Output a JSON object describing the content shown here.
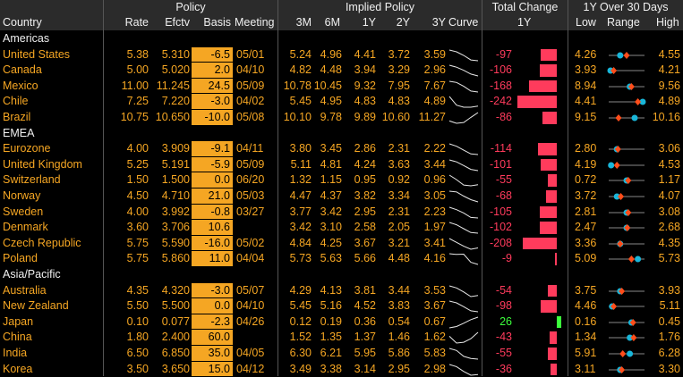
{
  "header_groups": {
    "policy": "Policy",
    "implied": "Implied Policy",
    "total_change": "Total Change",
    "over30": "1Y Over 30 Days"
  },
  "columns": {
    "country": "Country",
    "rate": "Rate",
    "efctv": "Efctv",
    "basis": "Basis",
    "meeting": "Meeting",
    "m3": "3M",
    "m6": "6M",
    "y1": "1Y",
    "y2": "2Y",
    "y3": "3Y",
    "curve": "Curve",
    "change1y": "1Y",
    "low": "Low",
    "range": "Range",
    "high": "High"
  },
  "colors": {
    "accent": "#f5a623",
    "negative": "#ff3b5c",
    "positive": "#3cff3c",
    "marker_dot": "#19b6d9",
    "marker_diamond": "#ff4d1a"
  },
  "sections": [
    {
      "region": "Americas",
      "rows": [
        {
          "country": "United States",
          "rate": "5.38",
          "efctv": "5.310",
          "basis": "-6.5",
          "meeting": "05/01",
          "m3": "5.24",
          "m6": "4.96",
          "y1": "4.41",
          "y2": "3.72",
          "y3": "3.59",
          "change": "-97",
          "change_val": -97,
          "low": "4.26",
          "high": "4.55",
          "dot": 0.3,
          "diamond": 0.5,
          "curve": [
            5.24,
            4.96,
            4.41,
            3.72,
            3.59
          ]
        },
        {
          "country": "Canada",
          "rate": "5.00",
          "efctv": "5.020",
          "basis": "2.0",
          "meeting": "04/10",
          "m3": "4.82",
          "m6": "4.48",
          "y1": "3.94",
          "y2": "3.29",
          "y3": "2.96",
          "change": "-106",
          "change_val": -106,
          "low": "3.93",
          "high": "4.21",
          "dot": 0.0,
          "diamond": 0.1,
          "curve": [
            4.82,
            4.48,
            3.94,
            3.29,
            2.96
          ]
        },
        {
          "country": "Mexico",
          "rate": "11.00",
          "efctv": "11.245",
          "basis": "24.5",
          "meeting": "05/09",
          "m3": "10.78",
          "m6": "10.45",
          "y1": "9.32",
          "y2": "7.95",
          "y3": "7.67",
          "change": "-168",
          "change_val": -168,
          "low": "8.94",
          "high": "9.56",
          "dot": 0.6,
          "diamond": 0.65,
          "curve": [
            10.78,
            10.45,
            9.32,
            7.95,
            7.67
          ]
        },
        {
          "country": "Chile",
          "rate": "7.25",
          "efctv": "7.220",
          "basis": "-3.0",
          "meeting": "04/02",
          "m3": "5.45",
          "m6": "4.95",
          "y1": "4.83",
          "y2": "4.83",
          "y3": "4.89",
          "change": "-242",
          "change_val": -242,
          "low": "4.41",
          "high": "4.89",
          "dot": 1.0,
          "diamond": 0.85,
          "curve": [
            5.45,
            4.95,
            4.83,
            4.83,
            4.89
          ]
        },
        {
          "country": "Brazil",
          "rate": "10.75",
          "efctv": "10.650",
          "basis": "-10.0",
          "meeting": "05/08",
          "m3": "10.10",
          "m6": "9.78",
          "y1": "9.89",
          "y2": "10.60",
          "y3": "11.27",
          "change": "-86",
          "change_val": -86,
          "low": "9.15",
          "high": "10.16",
          "dot": 0.75,
          "diamond": 0.25,
          "curve": [
            10.1,
            9.78,
            9.89,
            10.6,
            11.27
          ]
        }
      ]
    },
    {
      "region": "EMEA",
      "rows": [
        {
          "country": "Eurozone",
          "rate": "4.00",
          "efctv": "3.909",
          "basis": "-9.1",
          "meeting": "04/11",
          "m3": "3.80",
          "m6": "3.45",
          "y1": "2.86",
          "y2": "2.31",
          "y3": "2.22",
          "change": "-114",
          "change_val": -114,
          "low": "2.80",
          "high": "3.06",
          "dot": 0.2,
          "diamond": 0.23,
          "curve": [
            3.8,
            3.45,
            2.86,
            2.31,
            2.22
          ]
        },
        {
          "country": "United Kingdom",
          "rate": "5.25",
          "efctv": "5.191",
          "basis": "-5.9",
          "meeting": "05/09",
          "m3": "5.11",
          "m6": "4.81",
          "y1": "4.24",
          "y2": "3.63",
          "y3": "3.44",
          "change": "-101",
          "change_val": -101,
          "low": "4.19",
          "high": "4.53",
          "dot": 0.02,
          "diamond": 0.2,
          "curve": [
            5.11,
            4.81,
            4.24,
            3.63,
            3.44
          ]
        },
        {
          "country": "Switzerland",
          "rate": "1.50",
          "efctv": "1.500",
          "basis": "0.0",
          "meeting": "06/20",
          "m3": "1.32",
          "m6": "1.15",
          "y1": "0.95",
          "y2": "0.92",
          "y3": "0.96",
          "change": "-55",
          "change_val": -55,
          "low": "0.72",
          "high": "1.17",
          "dot": 0.5,
          "diamond": 0.55,
          "curve": [
            1.32,
            1.15,
            0.95,
            0.92,
            0.96
          ]
        },
        {
          "country": "Norway",
          "rate": "4.50",
          "efctv": "4.710",
          "basis": "21.0",
          "meeting": "05/03",
          "m3": "4.47",
          "m6": "4.37",
          "y1": "3.82",
          "y2": "3.34",
          "y3": "3.05",
          "change": "-68",
          "change_val": -68,
          "low": "3.72",
          "high": "4.07",
          "dot": 0.2,
          "diamond": 0.32,
          "curve": [
            4.47,
            4.37,
            3.82,
            3.34,
            3.05
          ]
        },
        {
          "country": "Sweden",
          "rate": "4.00",
          "efctv": "3.992",
          "basis": "-0.8",
          "meeting": "03/27",
          "m3": "3.77",
          "m6": "3.42",
          "y1": "2.95",
          "y2": "2.31",
          "y3": "2.23",
          "change": "-105",
          "change_val": -105,
          "low": "2.81",
          "high": "3.08",
          "dot": 0.5,
          "diamond": 0.55,
          "curve": [
            3.77,
            3.42,
            2.95,
            2.31,
            2.23
          ]
        },
        {
          "country": "Denmark",
          "rate": "3.60",
          "efctv": "3.706",
          "basis": "10.6",
          "meeting": "",
          "m3": "3.42",
          "m6": "3.10",
          "y1": "2.58",
          "y2": "2.05",
          "y3": "1.97",
          "change": "-102",
          "change_val": -102,
          "low": "2.47",
          "high": "2.68",
          "dot": 0.5,
          "diamond": 0.52,
          "curve": [
            3.42,
            3.1,
            2.58,
            2.05,
            1.97
          ]
        },
        {
          "country": "Czech Republic",
          "rate": "5.75",
          "efctv": "5.590",
          "basis": "-16.0",
          "meeting": "05/02",
          "m3": "4.84",
          "m6": "4.25",
          "y1": "3.67",
          "y2": "3.21",
          "y3": "3.41",
          "change": "-208",
          "change_val": -208,
          "low": "3.36",
          "high": "4.35",
          "dot": 0.3,
          "diamond": 0.3,
          "curve": [
            4.84,
            4.25,
            3.67,
            3.21,
            3.41
          ]
        },
        {
          "country": "Poland",
          "rate": "5.75",
          "efctv": "5.860",
          "basis": "11.0",
          "meeting": "04/04",
          "m3": "5.73",
          "m6": "5.63",
          "y1": "5.66",
          "y2": "4.48",
          "y3": "4.16",
          "change": "-9",
          "change_val": -9,
          "low": "5.09",
          "high": "5.73",
          "dot": 0.85,
          "diamond": 0.65,
          "curve": [
            5.73,
            5.63,
            5.66,
            4.48,
            4.16
          ]
        }
      ]
    },
    {
      "region": "Asia/Pacific",
      "rows": [
        {
          "country": "Australia",
          "rate": "4.35",
          "efctv": "4.320",
          "basis": "-3.0",
          "meeting": "05/07",
          "m3": "4.29",
          "m6": "4.13",
          "y1": "3.81",
          "y2": "3.44",
          "y3": "3.53",
          "change": "-54",
          "change_val": -54,
          "low": "3.75",
          "high": "3.93",
          "dot": 0.3,
          "diamond": 0.35,
          "curve": [
            4.29,
            4.13,
            3.81,
            3.44,
            3.53
          ]
        },
        {
          "country": "New Zealand",
          "rate": "5.50",
          "efctv": "5.500",
          "basis": "0.0",
          "meeting": "04/10",
          "m3": "5.45",
          "m6": "5.16",
          "y1": "4.52",
          "y2": "3.83",
          "y3": "3.67",
          "change": "-98",
          "change_val": -98,
          "low": "4.46",
          "high": "5.11",
          "dot": 0.05,
          "diamond": 0.1,
          "curve": [
            5.45,
            5.16,
            4.52,
            3.83,
            3.67
          ]
        },
        {
          "country": "Japan",
          "rate": "0.10",
          "efctv": "0.077",
          "basis": "-2.3",
          "meeting": "04/26",
          "m3": "0.12",
          "m6": "0.19",
          "y1": "0.36",
          "y2": "0.54",
          "y3": "0.67",
          "change": "26",
          "change_val": 26,
          "low": "0.16",
          "high": "0.45",
          "dot": 0.65,
          "diamond": 0.7,
          "curve": [
            0.12,
            0.19,
            0.36,
            0.54,
            0.67
          ]
        },
        {
          "country": "China",
          "rate": "1.80",
          "efctv": "2.400",
          "basis": "60.0",
          "meeting": "",
          "m3": "1.52",
          "m6": "1.35",
          "y1": "1.37",
          "y2": "1.46",
          "y3": "1.62",
          "change": "-43",
          "change_val": -43,
          "low": "1.34",
          "high": "1.76",
          "dot": 0.6,
          "diamond": 0.72,
          "curve": [
            1.52,
            1.35,
            1.37,
            1.46,
            1.62
          ]
        },
        {
          "country": "India",
          "rate": "6.50",
          "efctv": "6.850",
          "basis": "35.0",
          "meeting": "04/05",
          "m3": "6.30",
          "m6": "6.21",
          "y1": "5.95",
          "y2": "5.86",
          "y3": "5.83",
          "change": "-55",
          "change_val": -55,
          "low": "5.91",
          "high": "6.28",
          "dot": 0.6,
          "diamond": 0.38,
          "curve": [
            6.3,
            6.21,
            5.95,
            5.86,
            5.83
          ]
        },
        {
          "country": "Korea",
          "rate": "3.50",
          "efctv": "3.650",
          "basis": "15.0",
          "meeting": "04/12",
          "m3": "3.49",
          "m6": "3.38",
          "y1": "3.14",
          "y2": "2.95",
          "y3": "2.98",
          "change": "-36",
          "change_val": -36,
          "low": "3.11",
          "high": "3.30",
          "dot": 0.3,
          "diamond": 0.35,
          "curve": [
            3.49,
            3.38,
            3.14,
            2.95,
            2.98
          ]
        }
      ]
    }
  ]
}
